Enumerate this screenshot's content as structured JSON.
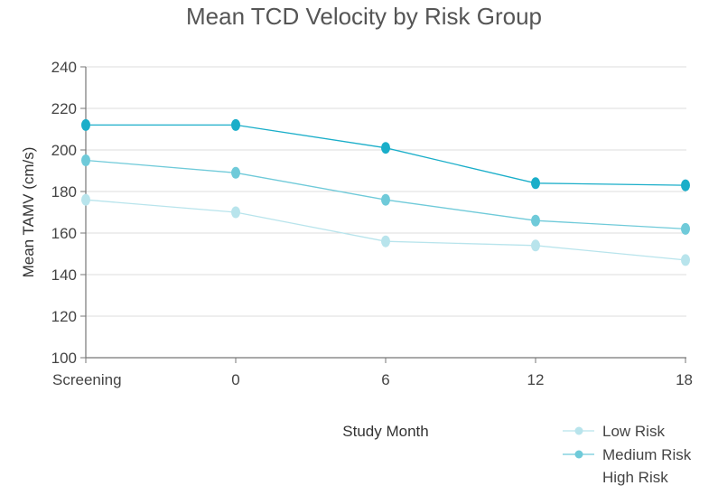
{
  "chart_data": {
    "type": "line",
    "title": "Mean TCD Velocity by Risk Group",
    "xlabel": "Study Month",
    "ylabel": "Mean TAMV (cm/s)",
    "categories": [
      "Screening",
      "0",
      "6",
      "12",
      "18"
    ],
    "ylim": [
      100,
      240
    ],
    "yticks": [
      100,
      120,
      140,
      160,
      180,
      200,
      220,
      240
    ],
    "grid": true,
    "legend_position": "bottom-right",
    "series": [
      {
        "name": "Low Risk",
        "color": "#b8e4ec",
        "values": [
          176,
          170,
          156,
          154,
          147
        ]
      },
      {
        "name": "Medium Risk",
        "color": "#6fcad9",
        "values": [
          195,
          189,
          176,
          166,
          162
        ]
      },
      {
        "name": "High Risk",
        "color": "#1aaec9",
        "values": [
          212,
          212,
          201,
          184,
          183
        ]
      }
    ]
  }
}
